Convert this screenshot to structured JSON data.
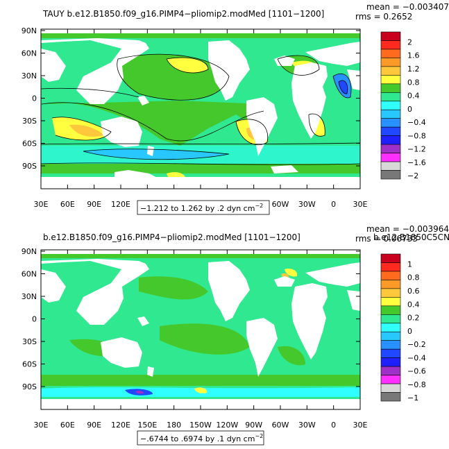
{
  "panels": [
    {
      "title": "TAUY  b.e12.B1850.f09_g16.PIMP4−pliomip2.modMed  [1101−1200]",
      "stats": {
        "mean": "mean = −0.003407",
        "rms": "rms = 0.2652"
      },
      "range_note": "−1.212 to 1.262 by .2 dyn cm",
      "range_sup": "−2",
      "lat_labels": [
        "90N",
        "60N",
        "30N",
        "0",
        "30S",
        "60S",
        "90S"
      ],
      "lon_labels": [
        "30E",
        "60E",
        "90E",
        "120E",
        "150E",
        "180",
        "150W",
        "120W",
        "90W",
        "60W",
        "30W",
        "0",
        "30E"
      ],
      "colorbar": {
        "labels": [
          "2",
          "1.6",
          "1.2",
          "0.8",
          "0.4",
          "0",
          "−0.4",
          "−0.8",
          "−1.2",
          "−1.6",
          "−2"
        ],
        "colors": [
          "#c8001e",
          "#ff2a1e",
          "#ff6a1e",
          "#ff9a28",
          "#ffc83c",
          "#ffff40",
          "#44c82c",
          "#30e890",
          "#30ffff",
          "#28c8ff",
          "#2890ff",
          "#2048ff",
          "#2020ff",
          "#a030c8",
          "#ff30ff",
          "#d8d8d8",
          "#787878"
        ]
      }
    },
    {
      "title": "b.e12.B1850.f09_g16.PIMP4−pliomip2.modMed  [1101−1200]",
      "title_overlap": "b.e12.B1850C5CN.",
      "stats": {
        "mean": "mean = −0.003964",
        "rms": "rms = 0.06733"
      },
      "range_note": "−.6744 to .6974 by .1 dyn cm",
      "range_sup": "−2",
      "lat_labels": [
        "90N",
        "60N",
        "30N",
        "0",
        "30S",
        "60S",
        "90S"
      ],
      "lon_labels": [
        "30E",
        "60E",
        "90E",
        "120E",
        "150E",
        "180",
        "150W",
        "120W",
        "90W",
        "60W",
        "30W",
        "0",
        "30E"
      ],
      "colorbar": {
        "labels": [
          "1",
          "0.8",
          "0.6",
          "0.4",
          "0.2",
          "0",
          "−0.2",
          "−0.4",
          "−0.6",
          "−0.8",
          "−1"
        ],
        "colors": [
          "#c8001e",
          "#ff2a1e",
          "#ff6a1e",
          "#ff9a28",
          "#ffc83c",
          "#ffff40",
          "#44c82c",
          "#30e890",
          "#30ffff",
          "#28c8ff",
          "#2890ff",
          "#2048ff",
          "#2020ff",
          "#a030c8",
          "#ff30ff",
          "#d8d8d8",
          "#787878"
        ]
      }
    }
  ]
}
